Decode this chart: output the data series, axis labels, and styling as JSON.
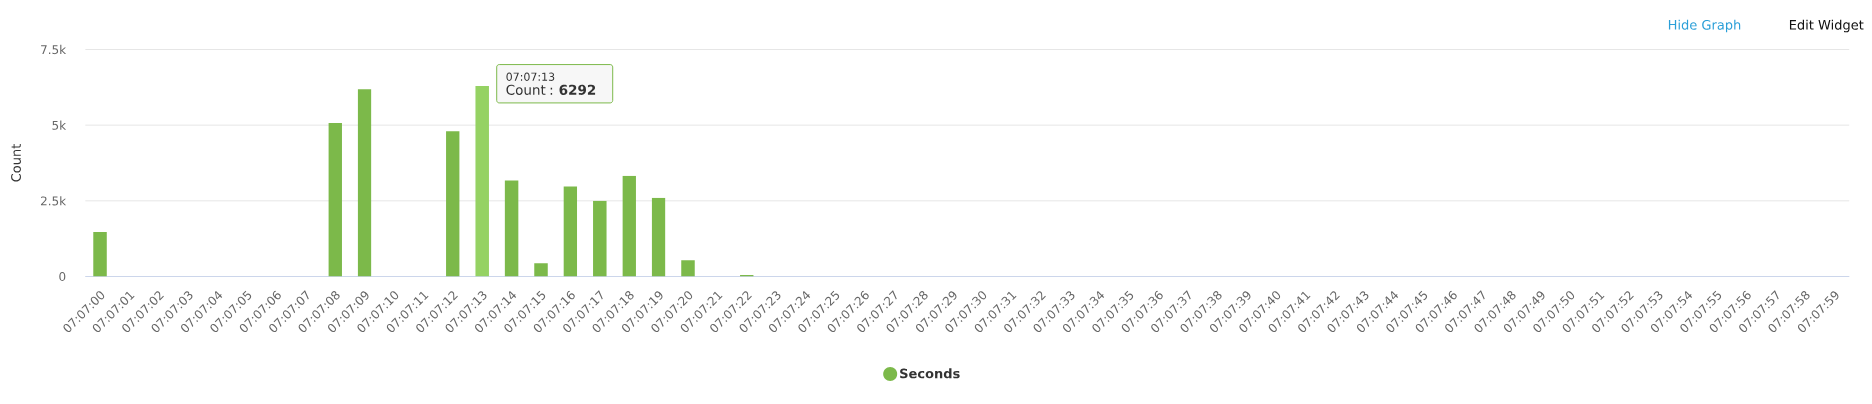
{
  "chart_data": {
    "type": "bar",
    "ylabel": "Count",
    "categories": [
      "07:07:00",
      "07:07:01",
      "07:07:02",
      "07:07:03",
      "07:07:04",
      "07:07:05",
      "07:07:06",
      "07:07:07",
      "07:07:08",
      "07:07:09",
      "07:07:10",
      "07:07:11",
      "07:07:12",
      "07:07:13",
      "07:07:14",
      "07:07:15",
      "07:07:16",
      "07:07:17",
      "07:07:18",
      "07:07:19",
      "07:07:20",
      "07:07:21",
      "07:07:22",
      "07:07:23",
      "07:07:24",
      "07:07:25",
      "07:07:26",
      "07:07:27",
      "07:07:28",
      "07:07:29",
      "07:07:30",
      "07:07:31",
      "07:07:32",
      "07:07:33",
      "07:07:34",
      "07:07:35",
      "07:07:36",
      "07:07:37",
      "07:07:38",
      "07:07:39",
      "07:07:40",
      "07:07:41",
      "07:07:42",
      "07:07:43",
      "07:07:44",
      "07:07:45",
      "07:07:46",
      "07:07:47",
      "07:07:48",
      "07:07:49",
      "07:07:50",
      "07:07:51",
      "07:07:52",
      "07:07:53",
      "07:07:54",
      "07:07:55",
      "07:07:56",
      "07:07:57",
      "07:07:58",
      "07:07:59"
    ],
    "series": [
      {
        "name": "Seconds",
        "color": "#7cb94a",
        "colors": [
          "#7cb94a",
          "#7cb94a",
          "#7cb94a",
          "#7cb94a",
          "#7cb94a",
          "#7cb94a",
          "#7cb94a",
          "#7cb94a",
          "#7cb94a",
          "#7cb94a",
          "#7cb94a",
          "#7cb94a",
          "#7cb94a",
          "#95d263",
          "#7cb94a",
          "#7cb94a",
          "#7cb94a",
          "#7cb94a",
          "#7cb94a",
          "#7cb94a",
          "#7cb94a",
          "#7cb94a",
          "#7cb94a",
          "#7cb94a",
          "#7cb94a",
          "#7cb94a",
          "#7cb94a",
          "#7cb94a",
          "#7cb94a",
          "#7cb94a",
          "#7cb94a",
          "#7cb94a",
          "#7cb94a",
          "#7cb94a",
          "#7cb94a",
          "#7cb94a",
          "#7cb94a",
          "#7cb94a",
          "#7cb94a",
          "#7cb94a",
          "#7cb94a",
          "#7cb94a",
          "#7cb94a",
          "#7cb94a",
          "#7cb94a",
          "#7cb94a",
          "#7cb94a",
          "#7cb94a",
          "#7cb94a",
          "#7cb94a",
          "#7cb94a",
          "#7cb94a",
          "#7cb94a",
          "#7cb94a",
          "#7cb94a",
          "#7cb94a",
          "#7cb94a",
          "#7cb94a",
          "#7cb94a",
          "#7cb94a"
        ],
        "values": [
          1470,
          0,
          0,
          0,
          0,
          0,
          0,
          0,
          5070,
          6190,
          0,
          0,
          4800,
          6292,
          3170,
          440,
          2970,
          2500,
          3330,
          2600,
          540,
          0,
          50,
          0,
          0,
          0,
          0,
          0,
          0,
          0,
          0,
          0,
          0,
          0,
          0,
          0,
          0,
          0,
          0,
          0,
          0,
          0,
          0,
          0,
          0,
          0,
          0,
          0,
          0,
          0,
          0,
          0,
          0,
          0,
          0,
          0,
          0,
          0,
          0,
          0
        ]
      }
    ],
    "ylim": [
      0,
      7500
    ],
    "yticks": [
      0,
      {
        "value": 2500,
        "label": "2.5k"
      },
      {
        "value": 5000,
        "label": "5k"
      },
      {
        "value": 7500,
        "label": "7.5k"
      }
    ],
    "grid": "y",
    "legend": "bottom",
    "annotations": [
      {
        "text": "07:07:13",
        "x": "07:07:13",
        "y": 6292
      },
      {
        "text": "Count : **6292**",
        "x": "07:07:13",
        "y": 6292
      },
      "Hide Graph",
      "Edit Widget"
    ]
  }
}
